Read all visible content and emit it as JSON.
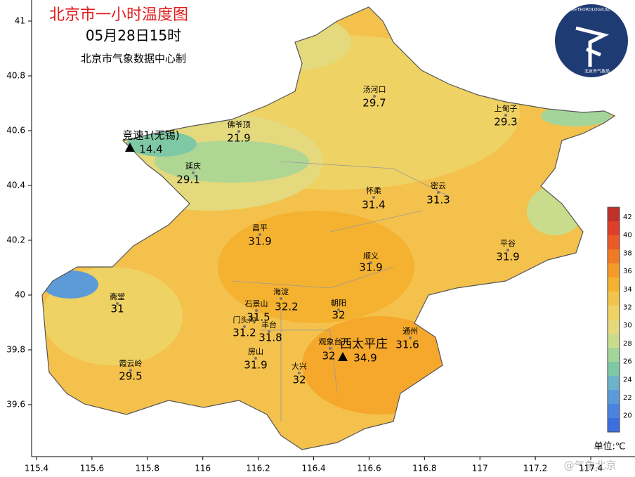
{
  "title": "北京市一小时温度图",
  "time": "05月28日15时",
  "credit": "北京市气象数据中心制",
  "logo": {
    "text": "BEIJING METEOROLOGICAL SERVICE",
    "subtext": "北京市气象局"
  },
  "watermark": "@气象北京",
  "axes": {
    "xticks": [
      115.4,
      115.6,
      115.8,
      116,
      116.2,
      116.4,
      116.6,
      116.8,
      117,
      117.2,
      117.4
    ],
    "yticks": [
      39.6,
      39.8,
      40,
      40.2,
      40.4,
      40.6,
      40.8,
      41
    ]
  },
  "stations": [
    {
      "name": "竞速1(无锡)",
      "value": 14.4
    },
    {
      "name": "佛爷顶",
      "value": 21.9
    },
    {
      "name": "延庆",
      "value": 29.1
    },
    {
      "name": "汤河口",
      "value": 29.7
    },
    {
      "name": "上甸子",
      "value": 29.3
    },
    {
      "name": "怀柔",
      "value": 31.4
    },
    {
      "name": "密云",
      "value": 31.3
    },
    {
      "name": "昌平",
      "value": 31.9
    },
    {
      "name": "顺义",
      "value": 31.9
    },
    {
      "name": "平谷",
      "value": 31.9
    },
    {
      "name": "斋堂",
      "value": 31.0
    },
    {
      "name": "海淀",
      "value": 32.2
    },
    {
      "name": "石景山",
      "value": 31.5
    },
    {
      "name": "朝阳",
      "value": 32.0
    },
    {
      "name": "门头沟",
      "value": 31.2
    },
    {
      "name": "丰台",
      "value": 31.8
    },
    {
      "name": "观象台",
      "value": 32.0
    },
    {
      "name": "西太平庄",
      "value": 34.9
    },
    {
      "name": "通州",
      "value": 31.6
    },
    {
      "name": "房山",
      "value": 31.9
    },
    {
      "name": "大兴",
      "value": 32.0
    },
    {
      "name": "霞云岭",
      "value": 29.5
    }
  ],
  "legend": {
    "title": "单位:℃",
    "ticks": [
      42,
      40,
      38,
      36,
      34,
      32,
      30,
      28,
      26,
      24,
      22,
      20
    ],
    "colors": [
      "#c0302a",
      "#de3f2a",
      "#ea5a27",
      "#f17a24",
      "#f59b27",
      "#f5b231",
      "#f3c44c",
      "#eed264",
      "#e4d97c",
      "#c9dc8c",
      "#a3d59a",
      "#7fc8a6",
      "#6cb3c8",
      "#5d9bd8",
      "#4b84e0",
      "#3b6fe0"
    ]
  }
}
